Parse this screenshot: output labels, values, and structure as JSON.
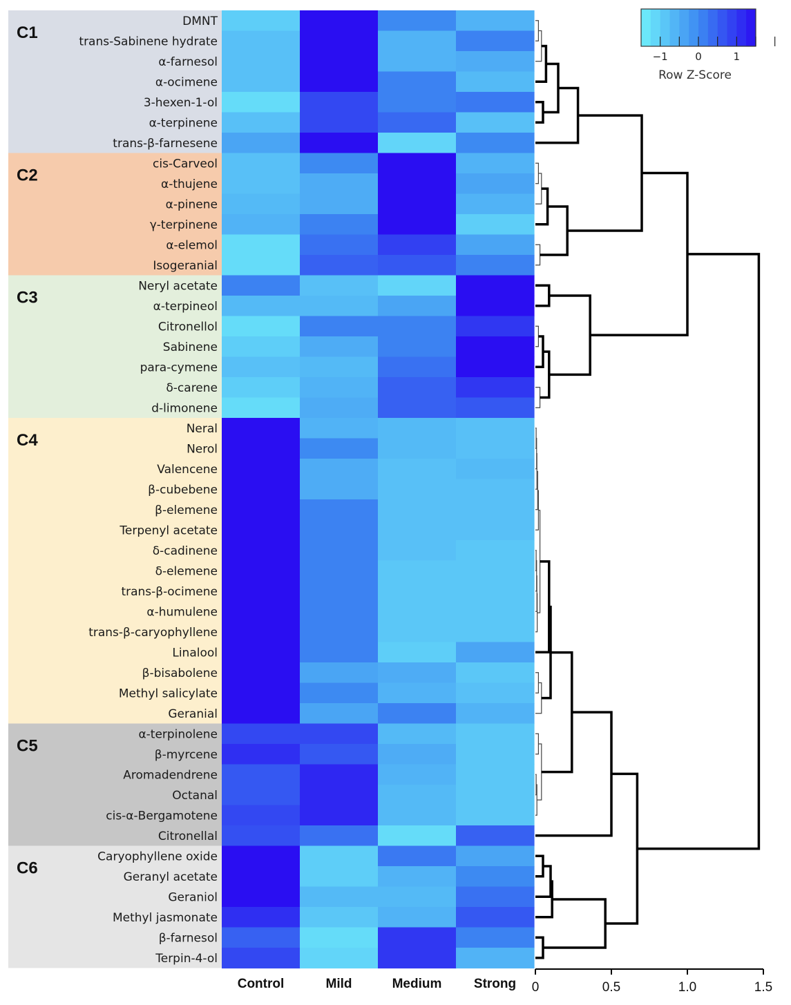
{
  "chart_data": {
    "type": "heatmap",
    "columns": [
      "Control",
      "Mild",
      "Medium",
      "Strong"
    ],
    "rows": [
      "DMNT",
      "trans-Sabinene hydrate",
      "α-farnesol",
      "α-ocimene",
      "3-hexen-1-ol",
      "α-terpinene",
      "trans-β-farnesene",
      "cis-Carveol",
      "α-thujene",
      "α-pinene",
      "γ-terpinene",
      "α-elemol",
      "Isogeranial",
      "Neryl acetate",
      "α-terpineol",
      "Citronellol",
      "Sabinene",
      "para-cymene",
      "δ-carene",
      "d-limonene",
      "Neral",
      "Nerol",
      "Valencene",
      "β-cubebene",
      "β-elemene",
      "Terpenyl acetate",
      "δ-cadinene",
      "δ-elemene",
      "trans-β-ocimene",
      "α-humulene",
      "trans-β-caryophyllene",
      "Linalool",
      "β-bisabolene",
      "Methyl salicylate",
      "Geranial",
      "α-terpinolene",
      "β-myrcene",
      "Aromadendrene",
      "Octanal",
      "cis-α-Bergamotene",
      "Citronellal",
      "Caryophyllene oxide",
      "Geranyl acetate",
      "Geraniol",
      "Methyl jasmonate",
      "β-farnesol",
      "Terpin-4-ol"
    ],
    "values": [
      [
        -1.0,
        1.5,
        0.0,
        -0.6
      ],
      [
        -0.8,
        1.5,
        -0.6,
        0.1
      ],
      [
        -0.8,
        1.5,
        -0.6,
        -0.5
      ],
      [
        -0.8,
        1.5,
        0.1,
        -0.7
      ],
      [
        -1.2,
        0.8,
        0.1,
        0.2
      ],
      [
        -0.8,
        0.8,
        0.4,
        -0.8
      ],
      [
        -0.4,
        1.5,
        -1.1,
        0.0
      ],
      [
        -0.8,
        0.0,
        1.5,
        -0.6
      ],
      [
        -0.8,
        -0.5,
        1.5,
        -0.4
      ],
      [
        -0.7,
        -0.5,
        1.5,
        -0.6
      ],
      [
        -0.6,
        0.1,
        1.5,
        -1.0
      ],
      [
        -1.2,
        0.3,
        0.9,
        -0.4
      ],
      [
        -1.2,
        0.5,
        0.6,
        0.1
      ],
      [
        0.1,
        -0.8,
        -1.1,
        1.5
      ],
      [
        -0.7,
        -0.7,
        -0.4,
        1.5
      ],
      [
        -1.2,
        0.1,
        0.1,
        1.0
      ],
      [
        -1.0,
        -0.5,
        0.1,
        1.5
      ],
      [
        -0.8,
        -0.7,
        0.3,
        1.5
      ],
      [
        -1.0,
        -0.6,
        0.5,
        1.0
      ],
      [
        -1.2,
        -0.5,
        0.5,
        0.6
      ],
      [
        1.5,
        -0.6,
        -0.7,
        -0.8
      ],
      [
        1.5,
        0.0,
        -0.7,
        -0.8
      ],
      [
        1.5,
        -0.5,
        -0.8,
        -0.7
      ],
      [
        1.5,
        -0.5,
        -0.8,
        -0.8
      ],
      [
        1.5,
        0.1,
        -0.8,
        -0.8
      ],
      [
        1.5,
        0.1,
        -0.8,
        -0.8
      ],
      [
        1.5,
        0.1,
        -0.8,
        -0.9
      ],
      [
        1.5,
        0.1,
        -0.9,
        -0.9
      ],
      [
        1.5,
        0.1,
        -0.9,
        -0.9
      ],
      [
        1.5,
        0.1,
        -0.9,
        -0.9
      ],
      [
        1.5,
        0.1,
        -0.9,
        -0.9
      ],
      [
        1.5,
        0.1,
        -1.0,
        -0.4
      ],
      [
        1.5,
        -0.4,
        -0.5,
        -0.9
      ],
      [
        1.5,
        0.0,
        -0.6,
        -0.8
      ],
      [
        1.5,
        -0.4,
        0.1,
        -0.6
      ],
      [
        0.8,
        0.8,
        -0.7,
        -0.9
      ],
      [
        1.1,
        0.6,
        -0.5,
        -0.9
      ],
      [
        0.6,
        1.2,
        -0.6,
        -0.9
      ],
      [
        0.6,
        1.2,
        -0.7,
        -0.9
      ],
      [
        0.8,
        1.2,
        -0.7,
        -0.9
      ],
      [
        0.7,
        0.3,
        -1.2,
        0.5
      ],
      [
        1.5,
        -1.0,
        0.2,
        -0.4
      ],
      [
        1.5,
        -1.0,
        -0.6,
        0.0
      ],
      [
        1.5,
        -0.7,
        -0.7,
        0.3
      ],
      [
        1.1,
        -0.9,
        -0.6,
        0.6
      ],
      [
        0.5,
        -1.2,
        1.0,
        0.1
      ],
      [
        0.8,
        -1.1,
        1.0,
        -0.6
      ]
    ],
    "clusters": [
      {
        "name": "C1",
        "rows": 7,
        "color": "#d9dde6"
      },
      {
        "name": "C2",
        "rows": 6,
        "color": "#f6cbac"
      },
      {
        "name": "C3",
        "rows": 7,
        "color": "#e3efdc"
      },
      {
        "name": "C4",
        "rows": 15,
        "color": "#fdefcd"
      },
      {
        "name": "C5",
        "rows": 6,
        "color": "#c6c6c6"
      },
      {
        "name": "C6",
        "rows": 6,
        "color": "#e5e5e5"
      }
    ],
    "color_scale": {
      "title": "Row Z-Score",
      "low": "#6ff0fb",
      "mid": "#3d8af2",
      "high": "#2a0ef2",
      "range": [
        -1.5,
        1.5
      ],
      "ticks": [
        "−1",
        "0",
        "1"
      ]
    },
    "dendrogram": {
      "axis_ticks": [
        "0",
        "0.5",
        "1.0",
        "1.5"
      ],
      "axis_range": [
        0,
        1.5
      ],
      "links": [
        {
          "a": "DMNT",
          "b": "trans-Sabinene hydrate",
          "h": 0.02
        },
        {
          "a": "L0",
          "b": "α-farnesol",
          "h": 0.04
        },
        {
          "a": "L1",
          "b": "α-ocimene",
          "h": 0.07
        },
        {
          "a": "3-hexen-1-ol",
          "b": "α-terpinene",
          "h": 0.05
        },
        {
          "a": "L2",
          "b": "L3",
          "h": 0.15
        },
        {
          "a": "L4",
          "b": "trans-β-farnesene",
          "h": 0.28
        },
        {
          "a": "cis-Carveol",
          "b": "α-thujene",
          "h": 0.02
        },
        {
          "a": "L6",
          "b": "α-pinene",
          "h": 0.04
        },
        {
          "a": "L7",
          "b": "γ-terpinene",
          "h": 0.08
        },
        {
          "a": "α-elemol",
          "b": "Isogeranial",
          "h": 0.03
        },
        {
          "a": "L8",
          "b": "L9",
          "h": 0.21
        },
        {
          "a": "L5",
          "b": "L10",
          "h": 0.7
        },
        {
          "a": "Neryl acetate",
          "b": "α-terpineol",
          "h": 0.09
        },
        {
          "a": "Citronellol",
          "b": "Sabinene",
          "h": 0.02
        },
        {
          "a": "L13",
          "b": "para-cymene",
          "h": 0.05
        },
        {
          "a": "δ-carene",
          "b": "d-limonene",
          "h": 0.03
        },
        {
          "a": "L14",
          "b": "L15",
          "h": 0.09
        },
        {
          "a": "L12",
          "b": "L16",
          "h": 0.36
        },
        {
          "a": "L11",
          "b": "L17",
          "h": 1.0
        },
        {
          "a": "Neral",
          "b": "Nerol",
          "h": 0.005
        },
        {
          "a": "L19",
          "b": "Valencene",
          "h": 0.008
        },
        {
          "a": "L20",
          "b": "β-cubebene",
          "h": 0.01
        },
        {
          "a": "L21",
          "b": "β-elemene",
          "h": 0.015
        },
        {
          "a": "L22",
          "b": "Terpenyl acetate",
          "h": 0.02
        },
        {
          "a": "δ-cadinene",
          "b": "δ-elemene",
          "h": 0.005
        },
        {
          "a": "L24",
          "b": "trans-β-ocimene",
          "h": 0.008
        },
        {
          "a": "L25",
          "b": "α-humulene",
          "h": 0.01
        },
        {
          "a": "L26",
          "b": "trans-β-caryophyllene",
          "h": 0.012
        },
        {
          "a": "L23",
          "b": "L27",
          "h": 0.03
        },
        {
          "a": "L28",
          "b": "Linalool",
          "h": 0.09
        },
        {
          "a": "β-bisabolene",
          "b": "Methyl salicylate",
          "h": 0.02
        },
        {
          "a": "L30",
          "b": "Geranial",
          "h": 0.04
        },
        {
          "a": "L29",
          "b": "L31",
          "h": 0.1
        },
        {
          "a": "α-terpinolene",
          "b": "β-myrcene",
          "h": 0.02
        },
        {
          "a": "Aromadendrene",
          "b": "Octanal",
          "h": 0.005
        },
        {
          "a": "L34",
          "b": "cis-α-Bergamotene",
          "h": 0.01
        },
        {
          "a": "L33",
          "b": "L35",
          "h": 0.04
        },
        {
          "a": "L32",
          "b": "L36",
          "h": 0.24
        },
        {
          "a": "L37",
          "b": "Citronellal",
          "h": 0.5
        },
        {
          "a": "Caryophyllene oxide",
          "b": "Geranyl acetate",
          "h": 0.05
        },
        {
          "a": "L39",
          "b": "Geraniol",
          "h": 0.1
        },
        {
          "a": "L40",
          "b": "Methyl jasmonate",
          "h": 0.11
        },
        {
          "a": "β-farnesol",
          "b": "Terpin-4-ol",
          "h": 0.05
        },
        {
          "a": "L41",
          "b": "L42",
          "h": 0.46
        },
        {
          "a": "L38",
          "b": "L43",
          "h": 0.67
        },
        {
          "a": "L18",
          "b": "L44",
          "h": 1.47
        }
      ]
    }
  }
}
